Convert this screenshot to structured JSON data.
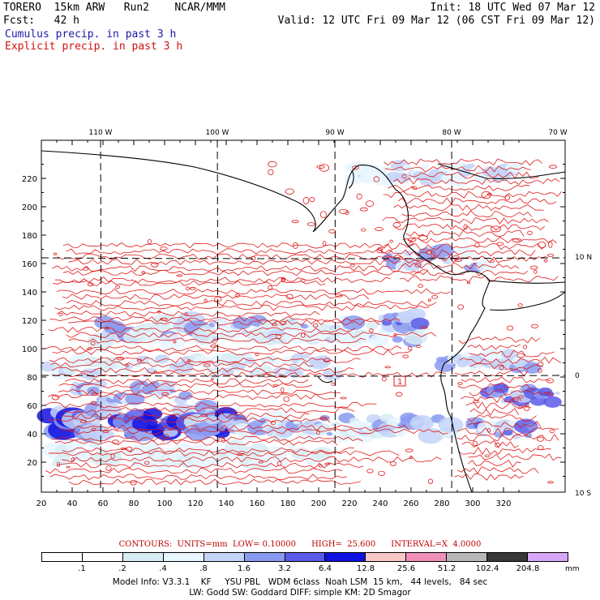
{
  "header": {
    "line1_left": "TORERO  15km ARW   Run2    NCAR/MMM",
    "line1_right": "Init: 18 UTC Wed 07 Mar 12",
    "line2_left": "Fcst:   42 h",
    "line2_right": "Valid: 12 UTC Fri 09 Mar 12 (06 CST Fri 09 Mar 12)",
    "field1": "Cumulus precip. in past 3 h",
    "field2": "Explicit precip. in past 3 h",
    "field1_color": "#1a1aa8",
    "field2_color": "#d01010"
  },
  "map": {
    "x_ticks": [
      "20",
      "40",
      "60",
      "80",
      "100",
      "120",
      "140",
      "160",
      "180",
      "200",
      "220",
      "240",
      "260",
      "280",
      "300",
      "320"
    ],
    "y_ticks": [
      "20",
      "40",
      "60",
      "80",
      "100",
      "120",
      "140",
      "160",
      "180",
      "200",
      "220"
    ],
    "lon_labels": [
      "110 W",
      "100 W",
      "90 W",
      "80 W",
      "70 W"
    ],
    "lat_labels": [
      "10 N",
      "0",
      "10 S"
    ],
    "contour_color": "#e01818",
    "land_color": "#000000",
    "grid_style": "dashed"
  },
  "contour_info": "CONTOURS:  UNITS=mm  LOW= 0.10000      HIGH=  25.600      INTERVAL=X  4.0000",
  "colorbar": {
    "labels": [
      ".1",
      ".2",
      ".4",
      ".8",
      "1.6",
      "3.2",
      "6.4",
      "12.8",
      "25.6",
      "51.2",
      "102.4",
      "204.8"
    ],
    "unit": "mm",
    "colors": [
      "#ffffff",
      "#ffffff",
      "#d8ecf4",
      "#e8f6ff",
      "#c4d4f8",
      "#8a9af0",
      "#5a5ae8",
      "#1010e0",
      "#f8c8c8",
      "#f090b8",
      "#b8b8b8",
      "#383838",
      "#d8a8f8"
    ]
  },
  "footer": {
    "line1": "Model Info: V3.3.1    KF     YSU PBL   WDM 6class  Noah LSM  15 km,   44 levels,   84 sec",
    "line2": "LW: Godd SW: Goddard DIFF: simple KM: 2D Smagor"
  }
}
